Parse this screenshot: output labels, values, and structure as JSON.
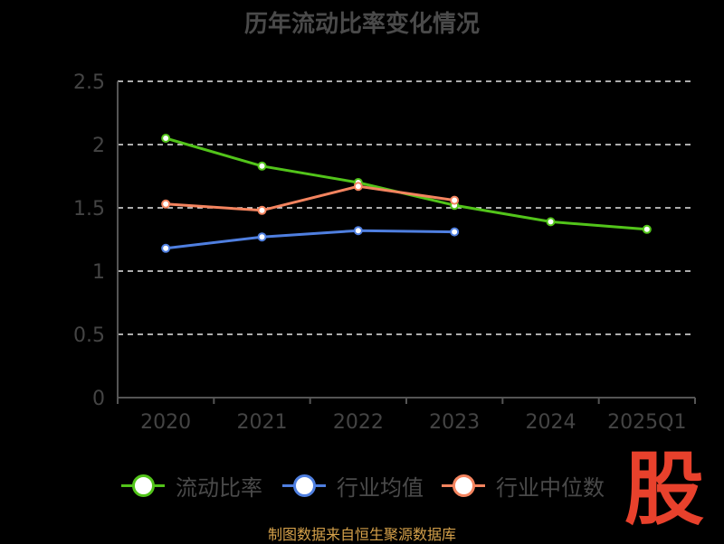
{
  "chart_data": {
    "type": "line",
    "title": "历年流动比率变化情况",
    "categories": [
      "2020",
      "2021",
      "2022",
      "2023",
      "2024",
      "2025Q1"
    ],
    "ylim": [
      0,
      2.5
    ],
    "yticks": [
      "0",
      "0.5",
      "1",
      "1.5",
      "2",
      "2.5"
    ],
    "grid": true,
    "legend_position": "bottom",
    "series": [
      {
        "name": "流动比率",
        "color": "#52c41a",
        "values": [
          2.05,
          1.83,
          1.7,
          1.52,
          1.39,
          1.33
        ]
      },
      {
        "name": "行业均值",
        "color": "#4f7fe0",
        "values": [
          1.18,
          1.27,
          1.32,
          1.31,
          null,
          null
        ]
      },
      {
        "name": "行业中位数",
        "color": "#f4845f",
        "values": [
          1.53,
          1.48,
          1.67,
          1.56,
          null,
          null
        ]
      }
    ]
  },
  "legend": {
    "items": [
      "流动比率",
      "行业均值",
      "行业中位数"
    ]
  },
  "watermark": "股",
  "source": "制图数据来自恒生聚源数据库"
}
